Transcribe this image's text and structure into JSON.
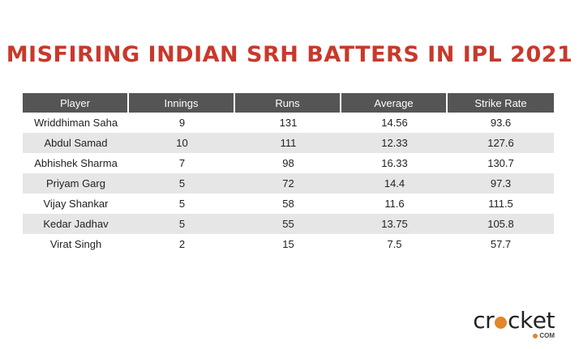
{
  "title": "MISFIRING INDIAN SRH BATTERS IN IPL 2021",
  "chart_data": {
    "type": "table",
    "title": "MISFIRING INDIAN SRH BATTERS IN IPL 2021",
    "columns": [
      "Player",
      "Innings",
      "Runs",
      "Average",
      "Strike Rate"
    ],
    "rows": [
      [
        "Wriddhiman Saha",
        "9",
        "131",
        "14.56",
        "93.6"
      ],
      [
        "Abdul Samad",
        "10",
        "111",
        "12.33",
        "127.6"
      ],
      [
        "Abhishek Sharma",
        "7",
        "98",
        "16.33",
        "130.7"
      ],
      [
        "Priyam Garg",
        "5",
        "72",
        "14.4",
        "97.3"
      ],
      [
        "Vijay Shankar",
        "5",
        "58",
        "11.6",
        "111.5"
      ],
      [
        "Kedar Jadhav",
        "5",
        "55",
        "13.75",
        "105.8"
      ],
      [
        "Virat Singh",
        "2",
        "15",
        "7.5",
        "57.7"
      ]
    ]
  },
  "logo": {
    "part1": "cr",
    "part2": "ck",
    "part3": "et",
    "sub": "COM",
    "accent": "#e0862c"
  }
}
